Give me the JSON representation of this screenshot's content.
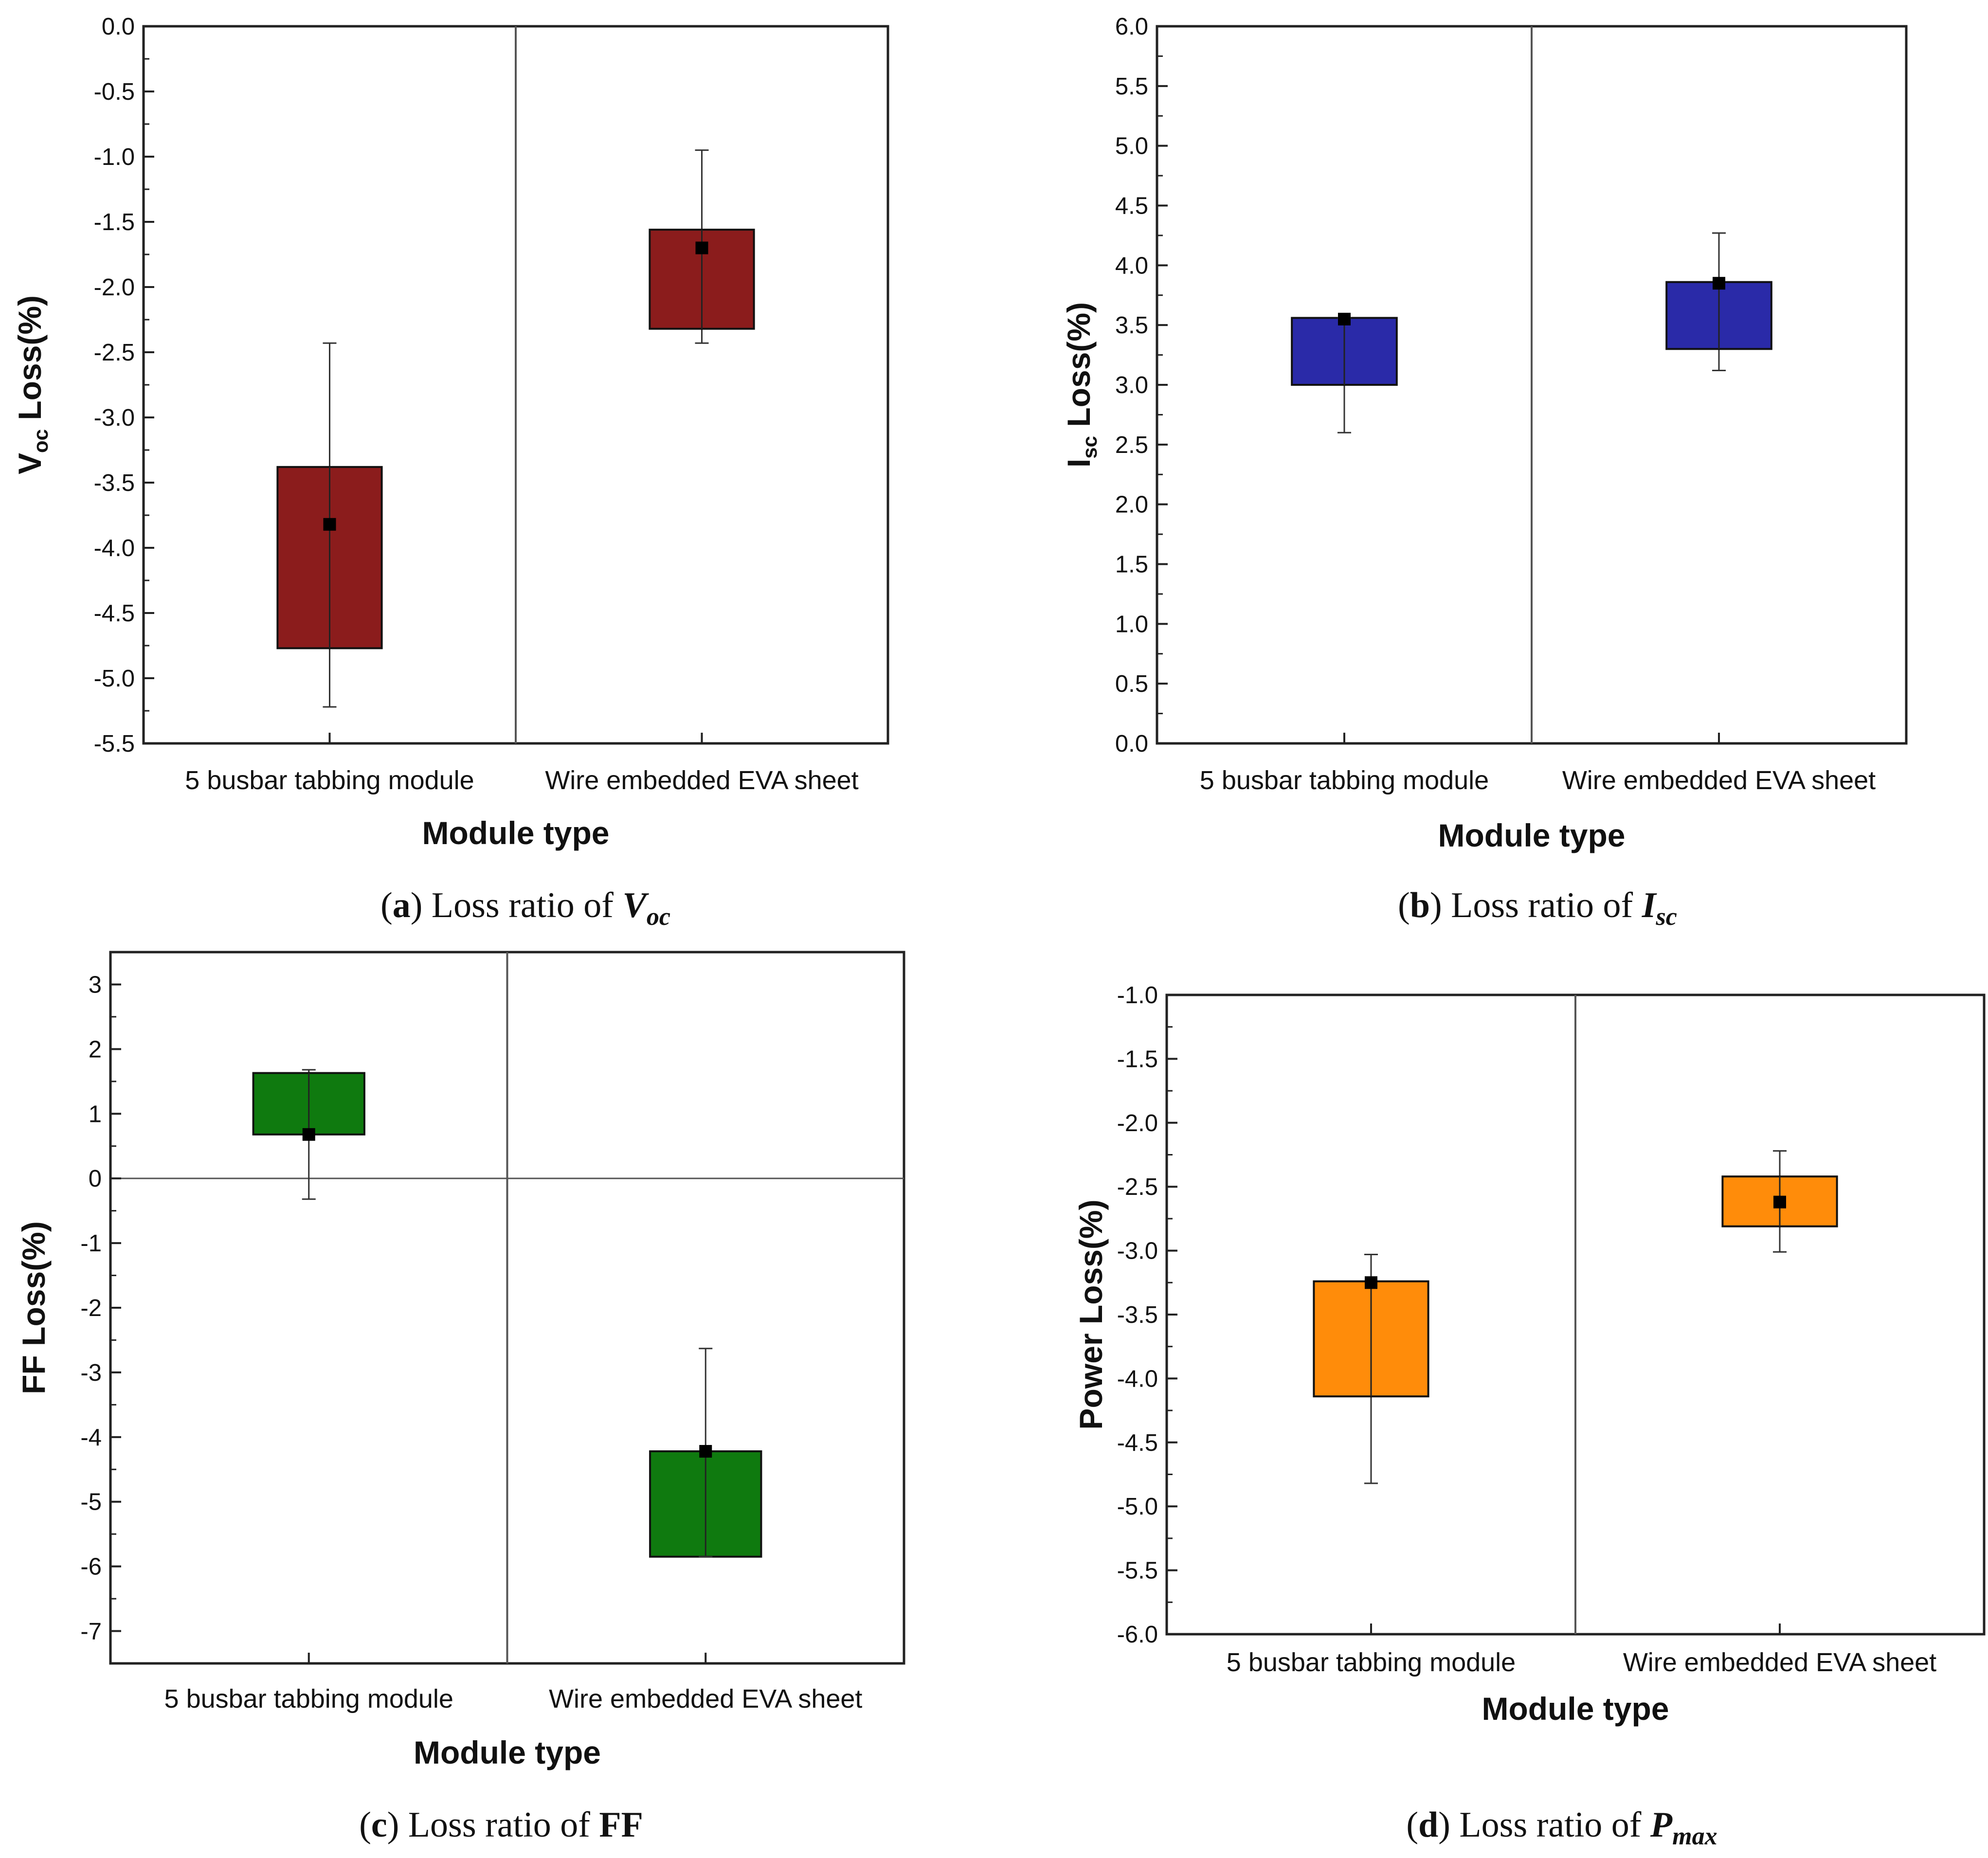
{
  "chart_data": [
    {
      "panel": "a",
      "type": "box",
      "ylabel_main": "V",
      "ylabel_sub": "oc",
      "ylabel_suffix": " Loss(%)",
      "xlabel": "Module type",
      "ylim": [
        -5.5,
        0.0
      ],
      "ytick_step": 0.5,
      "ytick_labels": [
        "0.0",
        "-0.5",
        "-1.0",
        "-1.5",
        "-2.0",
        "-2.5",
        "-3.0",
        "-3.5",
        "-4.0",
        "-4.5",
        "-5.0",
        "-5.5"
      ],
      "categories": [
        "5 busbar tabbing module",
        "Wire embedded EVA sheet"
      ],
      "color": "#8b1c1c",
      "boxes": [
        {
          "low": -4.77,
          "high": -3.38,
          "mean": -3.82,
          "whisker_low": -5.22,
          "whisker_high": -2.43
        },
        {
          "low": -2.32,
          "high": -1.56,
          "mean": -1.7,
          "whisker_low": -2.43,
          "whisker_high": -0.95
        }
      ],
      "zero_line": false,
      "caption": {
        "letter": "a",
        "text": ") Loss ratio of ",
        "var": "V",
        "sub": "oc"
      }
    },
    {
      "panel": "b",
      "type": "box",
      "ylabel_main": "I",
      "ylabel_sub": "sc",
      "ylabel_suffix": " Loss(%)",
      "xlabel": "Module type",
      "ylim": [
        0.0,
        6.0
      ],
      "ytick_step": 0.5,
      "ytick_labels": [
        "0.0",
        "0.5",
        "1.0",
        "1.5",
        "2.0",
        "2.5",
        "3.0",
        "3.5",
        "4.0",
        "4.5",
        "5.0",
        "5.5",
        "6.0"
      ],
      "categories": [
        "5 busbar tabbing module",
        "Wire embedded EVA sheet"
      ],
      "color": "#2a2aa8",
      "boxes": [
        {
          "low": 3.0,
          "high": 3.56,
          "mean": 3.55,
          "whisker_low": 2.6,
          "whisker_high": 3.56
        },
        {
          "low": 3.3,
          "high": 3.86,
          "mean": 3.85,
          "whisker_low": 3.12,
          "whisker_high": 4.27
        }
      ],
      "zero_line": false,
      "caption": {
        "letter": "b",
        "text": ") Loss ratio of ",
        "var": "I",
        "sub": "sc"
      }
    },
    {
      "panel": "c",
      "type": "box",
      "ylabel_main": "FF",
      "ylabel_sub": "",
      "ylabel_suffix": " Loss(%)",
      "xlabel": "Module type",
      "ylim": [
        -7.5,
        3.5
      ],
      "ytick_step": 1,
      "ytick_labels": [
        "3",
        "2",
        "1",
        "0",
        "-1",
        "-2",
        "-3",
        "-4",
        "-5",
        "-6",
        "-7"
      ],
      "categories": [
        "5 busbar tabbing module",
        "Wire embedded EVA sheet"
      ],
      "color": "#0f7a0f",
      "boxes": [
        {
          "low": 0.68,
          "high": 1.63,
          "mean": 0.68,
          "whisker_low": -0.32,
          "whisker_high": 1.68
        },
        {
          "low": -5.85,
          "high": -4.22,
          "mean": -4.22,
          "whisker_low": -5.85,
          "whisker_high": -2.63
        }
      ],
      "zero_line": true,
      "caption": {
        "letter": "c",
        "text": ") Loss ratio of ",
        "var": "FF",
        "sub": ""
      }
    },
    {
      "panel": "d",
      "type": "box",
      "ylabel_main": "Power",
      "ylabel_sub": "",
      "ylabel_suffix": " Loss(%)",
      "xlabel": "Module type",
      "ylim": [
        -6.0,
        -1.0
      ],
      "ytick_step": 0.5,
      "ytick_labels": [
        "-1.0",
        "-1.5",
        "-2.0",
        "-2.5",
        "-3.0",
        "-3.5",
        "-4.0",
        "-4.5",
        "-5.0",
        "-5.5",
        "-6.0"
      ],
      "categories": [
        "5 busbar tabbing module",
        "Wire embedded EVA sheet"
      ],
      "color": "#ff8c0a",
      "boxes": [
        {
          "low": -4.14,
          "high": -3.24,
          "mean": -3.25,
          "whisker_low": -4.82,
          "whisker_high": -3.03
        },
        {
          "low": -2.81,
          "high": -2.42,
          "mean": -2.62,
          "whisker_low": -3.01,
          "whisker_high": -2.22
        }
      ],
      "zero_line": false,
      "caption": {
        "letter": "d",
        "text": ") Loss ratio of ",
        "var": "P",
        "sub": "max"
      }
    }
  ]
}
